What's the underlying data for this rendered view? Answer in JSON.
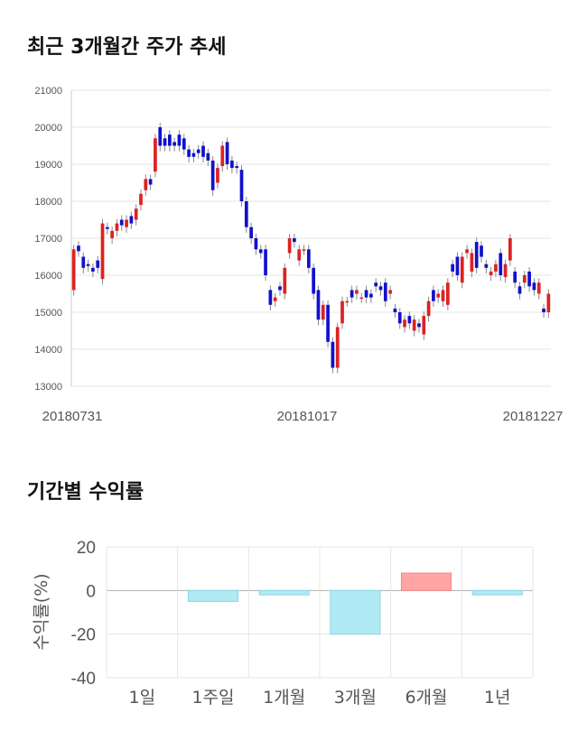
{
  "section1": {
    "title": "최근 3개월간 주가 추세"
  },
  "section2": {
    "title": "기간별 수익률"
  },
  "chart_data": [
    {
      "type": "candlestick",
      "title": "최근 3개월간 주가 추세",
      "y_ticks": [
        "21000",
        "20000",
        "19000",
        "18000",
        "17000",
        "16000",
        "15000",
        "14000",
        "13000"
      ],
      "ylim": [
        13000,
        21000
      ],
      "x_tick_labels": [
        "20180731",
        "20181017",
        "20181227"
      ],
      "grid": true,
      "up_color": "#dd2222",
      "down_color": "#1111cc",
      "candles": [
        [
          15600,
          16700
        ],
        [
          16800,
          16650
        ],
        [
          16500,
          16200
        ],
        [
          16300,
          16250
        ],
        [
          16200,
          16100
        ],
        [
          16400,
          16200
        ],
        [
          15900,
          17400
        ],
        [
          17300,
          17250
        ],
        [
          17000,
          17200
        ],
        [
          17200,
          17400
        ],
        [
          17500,
          17350
        ],
        [
          17300,
          17500
        ],
        [
          17600,
          17400
        ],
        [
          17500,
          17800
        ],
        [
          17900,
          18200
        ],
        [
          18300,
          18600
        ],
        [
          18600,
          18450
        ],
        [
          18800,
          19700
        ],
        [
          20000,
          19500
        ],
        [
          19700,
          19500
        ],
        [
          19800,
          19500
        ],
        [
          19600,
          19500
        ],
        [
          19800,
          19500
        ],
        [
          19700,
          19400
        ],
        [
          19400,
          19200
        ],
        [
          19300,
          19200
        ],
        [
          19400,
          19300
        ],
        [
          19500,
          19200
        ],
        [
          19300,
          19100
        ],
        [
          19100,
          18300
        ],
        [
          18500,
          18900
        ],
        [
          18950,
          19500
        ],
        [
          19600,
          19000
        ],
        [
          19100,
          18900
        ],
        [
          18950,
          18900
        ],
        [
          18850,
          18000
        ],
        [
          18000,
          17300
        ],
        [
          17300,
          17000
        ],
        [
          17000,
          16700
        ],
        [
          16700,
          16600
        ],
        [
          16700,
          16000
        ],
        [
          15600,
          15200
        ],
        [
          15300,
          15400
        ],
        [
          15700,
          15600
        ],
        [
          15500,
          16200
        ],
        [
          16600,
          17000
        ],
        [
          17000,
          16900
        ],
        [
          16400,
          16700
        ],
        [
          16700,
          16700
        ],
        [
          16700,
          16200
        ],
        [
          16200,
          15500
        ],
        [
          15600,
          14800
        ],
        [
          14800,
          15200
        ],
        [
          15200,
          14200
        ],
        [
          14200,
          13500
        ],
        [
          13500,
          14600
        ],
        [
          14700,
          15300
        ],
        [
          15300,
          15300
        ],
        [
          15600,
          15400
        ],
        [
          15500,
          15600
        ],
        [
          15400,
          15400
        ],
        [
          15600,
          15400
        ],
        [
          15500,
          15400
        ],
        [
          15800,
          15700
        ],
        [
          15700,
          15600
        ],
        [
          15800,
          15300
        ],
        [
          15500,
          15600
        ],
        [
          15100,
          15000
        ],
        [
          15000,
          14700
        ],
        [
          14600,
          14800
        ],
        [
          14900,
          14700
        ],
        [
          14500,
          14800
        ],
        [
          14700,
          14600
        ],
        [
          14400,
          14900
        ],
        [
          14900,
          15300
        ],
        [
          15600,
          15300
        ],
        [
          15400,
          15500
        ],
        [
          15300,
          15600
        ],
        [
          15200,
          15800
        ],
        [
          16300,
          16100
        ],
        [
          16500,
          16000
        ],
        [
          15800,
          16500
        ],
        [
          16600,
          16700
        ],
        [
          16100,
          16600
        ],
        [
          16900,
          16200
        ],
        [
          16800,
          16500
        ],
        [
          16300,
          16200
        ],
        [
          16000,
          16100
        ],
        [
          16100,
          16300
        ],
        [
          16600,
          16000
        ],
        [
          15950,
          16300
        ],
        [
          16400,
          17000
        ],
        [
          16100,
          15800
        ],
        [
          15700,
          15500
        ],
        [
          15800,
          16000
        ],
        [
          16100,
          15700
        ],
        [
          15800,
          15600
        ],
        [
          15500,
          15800
        ],
        [
          15100,
          15000
        ],
        [
          15000,
          15500
        ]
      ]
    },
    {
      "type": "bar",
      "title": "기간별 수익률",
      "categories": [
        "1일",
        "1주일",
        "1개월",
        "3개월",
        "6개월",
        "1년"
      ],
      "values": [
        0,
        -5,
        -2,
        -20,
        8,
        -2
      ],
      "ylabel": "수익률(%)",
      "y_ticks": [
        "20",
        "0",
        "-20",
        "-40"
      ],
      "ylim": [
        -40,
        20
      ],
      "negative_color": "#b0eaf4",
      "positive_color": "#ffa5a5",
      "grid": true
    }
  ]
}
